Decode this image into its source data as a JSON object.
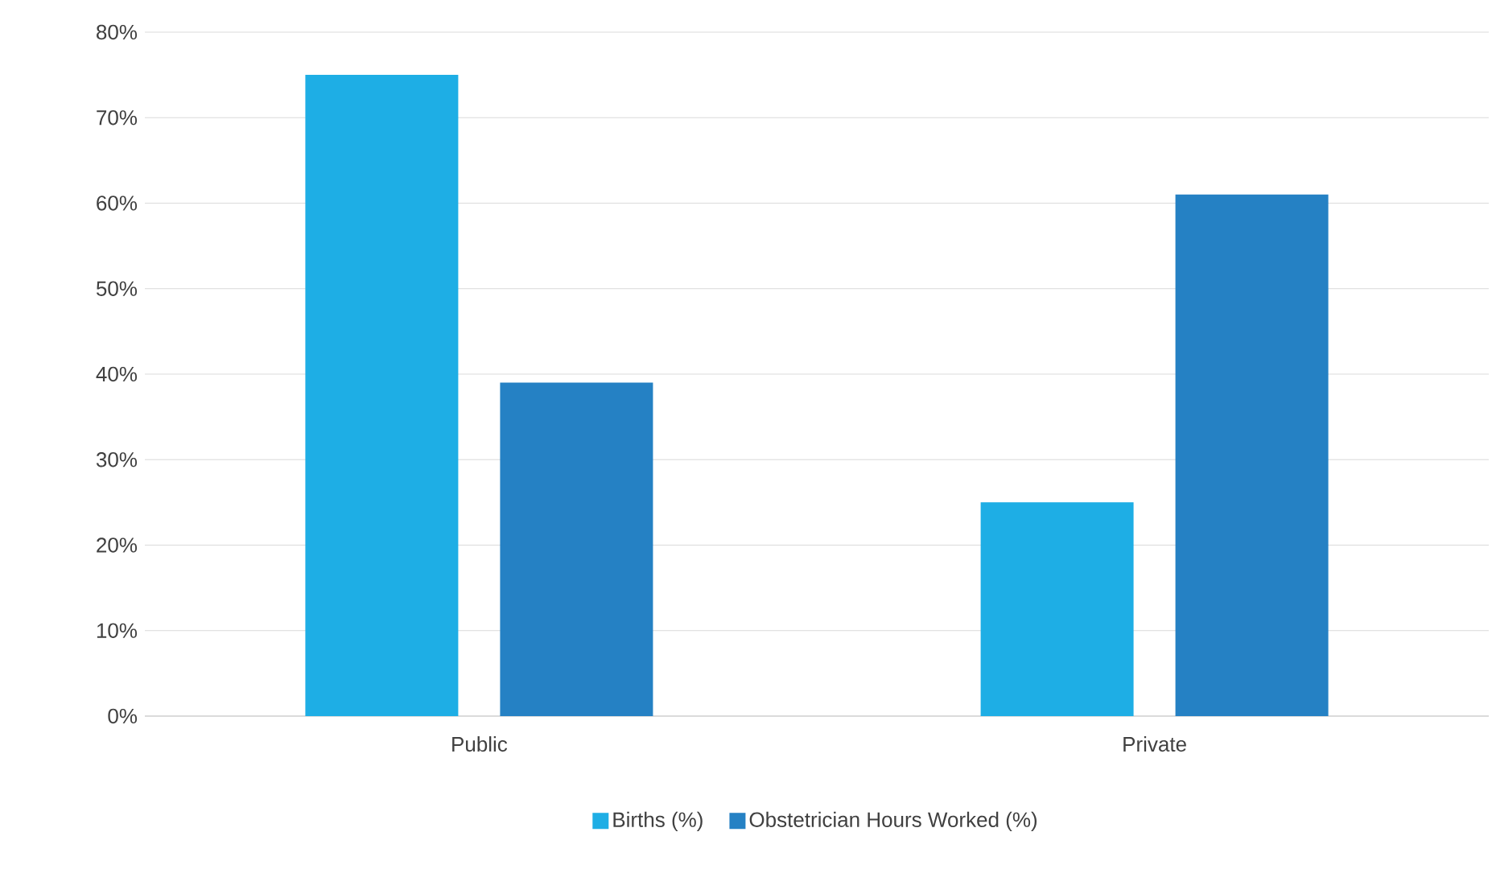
{
  "chart_data": {
    "type": "bar",
    "categories": [
      "Public",
      "Private"
    ],
    "series": [
      {
        "name": "Births (%)",
        "color": "#1eaee5",
        "values": [
          75,
          25
        ]
      },
      {
        "name": "Obstetrician Hours Worked (%)",
        "color": "#2581c4",
        "values": [
          39,
          61
        ]
      }
    ],
    "ylim": [
      0,
      80
    ],
    "yticks": [
      {
        "value": 0,
        "label": "0%"
      },
      {
        "value": 10,
        "label": "10%"
      },
      {
        "value": 20,
        "label": "20%"
      },
      {
        "value": 30,
        "label": "30%"
      },
      {
        "value": 40,
        "label": "40%"
      },
      {
        "value": 50,
        "label": "50%"
      },
      {
        "value": 60,
        "label": "60%"
      },
      {
        "value": 70,
        "label": "70%"
      },
      {
        "value": 80,
        "label": "80%"
      }
    ],
    "grid": "y",
    "legend": "bottom"
  }
}
